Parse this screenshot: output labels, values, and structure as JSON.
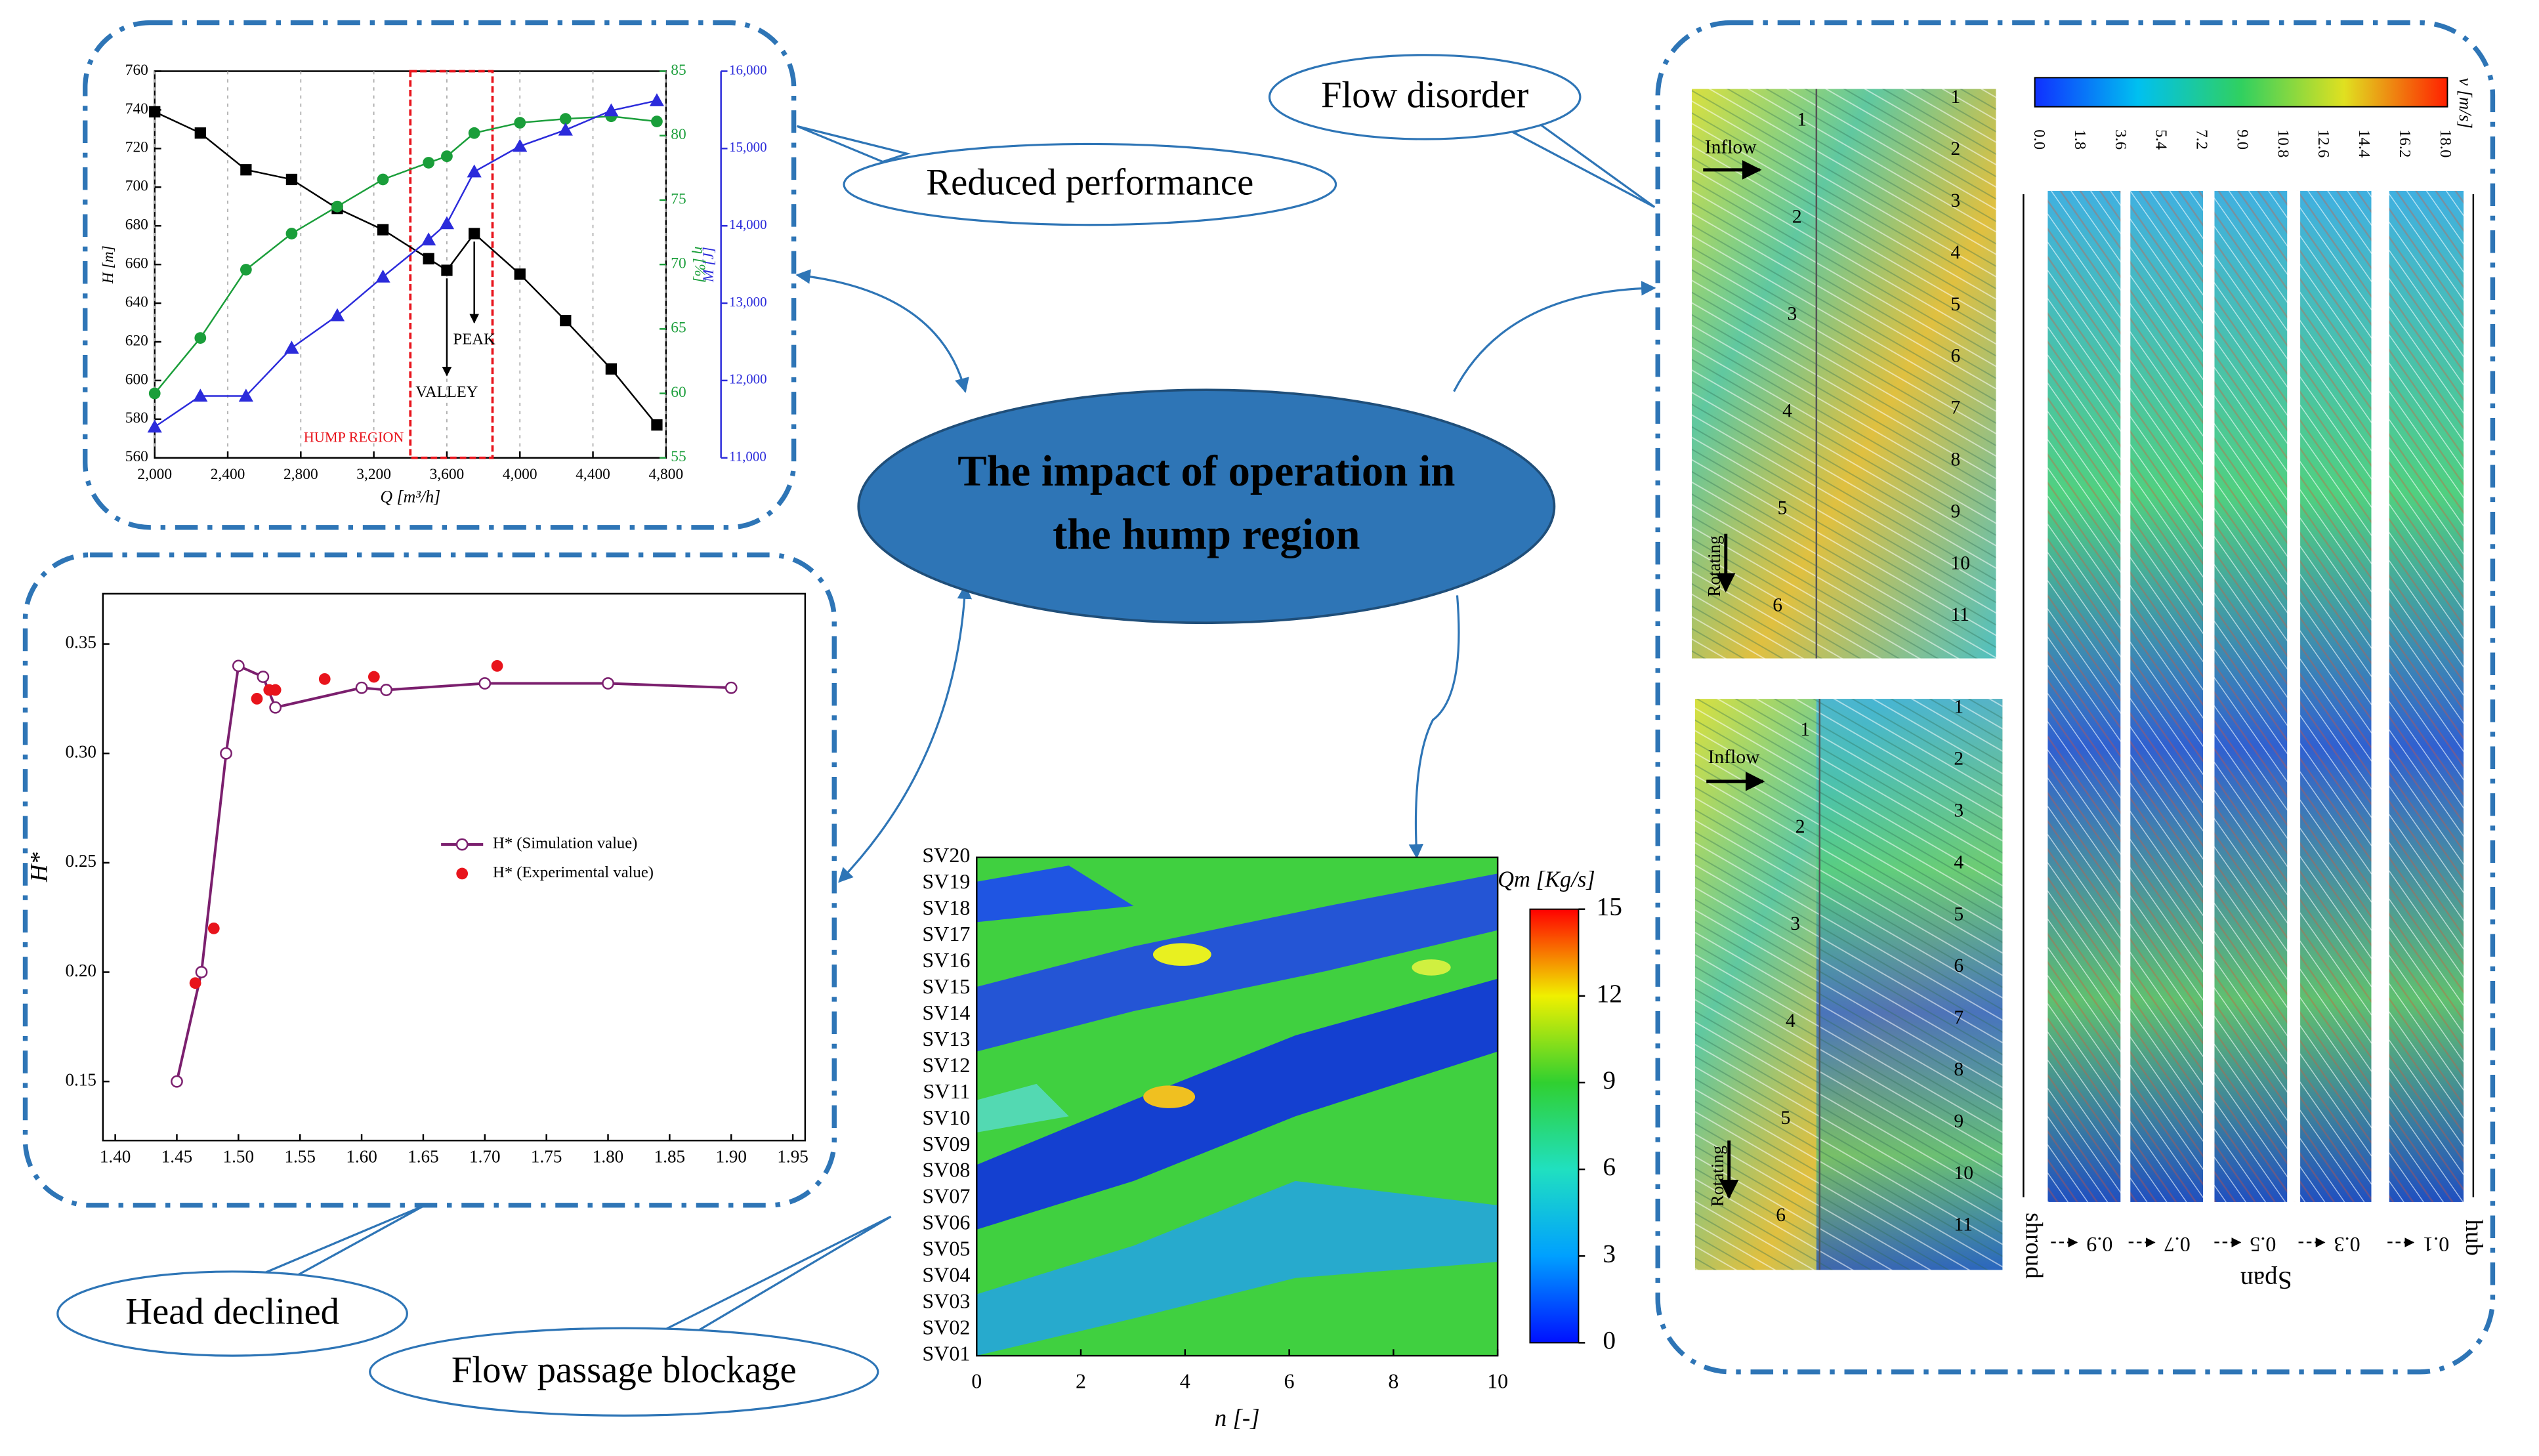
{
  "center": {
    "title_lines": [
      "The impact of operation in",
      "the hump region"
    ]
  },
  "callouts": {
    "reduced_performance": "Reduced performance",
    "flow_disorder": "Flow disorder",
    "head_declined": "Head declined",
    "flow_passage_blockage": "Flow passage blockage"
  },
  "chart_data": [
    {
      "type": "line",
      "xlabel": "Q [m³/h]",
      "ylabel": "H [m]",
      "y2label": "η [%]",
      "y3label": "M [J]",
      "xlim": [
        2000,
        4800
      ],
      "xticks": [
        {
          "value": 2000,
          "label": "2,000"
        },
        {
          "value": 2400,
          "label": "2,400"
        },
        {
          "value": 2800,
          "label": "2,800"
        },
        {
          "value": 3200,
          "label": "3,200"
        },
        {
          "value": 3600,
          "label": "3,600"
        },
        {
          "value": 4000,
          "label": "4,000"
        },
        {
          "value": 4400,
          "label": "4,400"
        },
        {
          "value": 4800,
          "label": "4,800"
        }
      ],
      "ylim": [
        560,
        760
      ],
      "yticks": [
        560,
        580,
        600,
        620,
        640,
        660,
        680,
        700,
        720,
        740,
        760
      ],
      "y2lim": [
        55,
        85
      ],
      "y2ticks": [
        55,
        60,
        65,
        70,
        75,
        80,
        85
      ],
      "y3lim": [
        11000,
        16000
      ],
      "y3ticks": [
        {
          "value": 11000,
          "label": "11,000"
        },
        {
          "value": 12000,
          "label": "12,000"
        },
        {
          "value": 13000,
          "label": "13,000"
        },
        {
          "value": 14000,
          "label": "14,000"
        },
        {
          "value": 15000,
          "label": "15,000"
        },
        {
          "value": 16000,
          "label": "16,000"
        }
      ],
      "grid": true,
      "annotations": {
        "peak": "PEAK",
        "valley": "VALLEY",
        "hump_region": "HUMP REGION"
      },
      "hump_region_x": [
        3400,
        3850
      ],
      "series": [
        {
          "color": "#000000",
          "marker": "square",
          "axis": "y",
          "x": [
            2000,
            2250,
            2500,
            2750,
            3000,
            3250,
            3500,
            3600,
            3750,
            4000,
            4250,
            4500,
            4750
          ],
          "values": [
            739,
            728,
            709,
            704,
            689,
            678,
            663,
            657,
            676,
            655,
            631,
            606,
            577
          ]
        },
        {
          "color": "#1a9e3a",
          "marker": "circle",
          "axis": "y2",
          "x": [
            2000,
            2250,
            2500,
            2750,
            3000,
            3250,
            3500,
            3600,
            3750,
            4000,
            4250,
            4500,
            4750
          ],
          "values": [
            60,
            64.3,
            69.6,
            72.4,
            74.5,
            76.6,
            77.9,
            78.4,
            80.2,
            81,
            81.3,
            81.5,
            81.1
          ]
        },
        {
          "color": "#2b2bdb",
          "marker": "triangle",
          "axis": "y3",
          "x": [
            2000,
            2250,
            2500,
            2750,
            3000,
            3250,
            3500,
            3600,
            3750,
            4000,
            4250,
            4500,
            4750
          ],
          "values": [
            11400,
            11800,
            11800,
            12420,
            12840,
            13340,
            13820,
            14030,
            14700,
            15030,
            15240,
            15490,
            15620
          ]
        }
      ]
    },
    {
      "type": "line",
      "ylabel": "H*",
      "xlim": [
        1.39,
        1.96
      ],
      "xticks": [
        {
          "value": 1.4,
          "label": "1.40"
        },
        1.45,
        {
          "value": 1.5,
          "label": "1.50"
        },
        1.55,
        {
          "value": 1.6,
          "label": "1.60"
        },
        1.65,
        {
          "value": 1.7,
          "label": "1.70"
        },
        1.75,
        {
          "value": 1.8,
          "label": "1.80"
        },
        1.85,
        {
          "value": 1.9,
          "label": "1.90"
        },
        1.95
      ],
      "ylim": [
        0.123,
        0.373
      ],
      "yticks": [
        0.15,
        {
          "value": 0.2,
          "label": "0.20"
        },
        0.25,
        {
          "value": 0.3,
          "label": "0.30"
        },
        0.35
      ],
      "series": [
        {
          "name": "H* (Simulation value)",
          "color": "#7b1f6e",
          "marker": "open-circle",
          "style": "line",
          "x": [
            1.45,
            1.47,
            1.49,
            1.5,
            1.52,
            1.53,
            1.6,
            1.62,
            1.7,
            1.8,
            1.9
          ],
          "values": [
            0.15,
            0.2,
            0.3,
            0.34,
            0.335,
            0.321,
            0.33,
            0.329,
            0.332,
            0.332,
            0.33
          ]
        },
        {
          "name": "H* (Experimental value)",
          "color": "#e8141c",
          "marker": "circle",
          "style": "markers",
          "x": [
            1.465,
            1.48,
            1.515,
            1.525,
            1.53,
            1.57,
            1.61,
            1.71
          ],
          "values": [
            0.195,
            0.22,
            0.325,
            0.329,
            0.329,
            0.334,
            0.335,
            0.34
          ]
        }
      ]
    },
    {
      "type": "heatmap",
      "xlabel": "n [-]",
      "colorbar_label": "Qm [Kg/s]",
      "categories": [
        "SV01",
        "SV02",
        "SV03",
        "SV04",
        "SV05",
        "SV06",
        "SV07",
        "SV08",
        "SV09",
        "SV10",
        "SV11",
        "SV12",
        "SV13",
        "SV14",
        "SV15",
        "SV16",
        "SV17",
        "SV18",
        "SV19",
        "SV20"
      ],
      "xlim": [
        0,
        10
      ],
      "xticks": [
        0,
        2,
        4,
        6,
        8,
        10
      ],
      "clim": [
        0,
        15
      ],
      "cticks": [
        0,
        3,
        6,
        9,
        12,
        15
      ]
    }
  ],
  "flow_field": {
    "colorbar_label": "v [m/s]",
    "colorbar_labels": [
      "0.0",
      "1.8",
      "3.6",
      "5.4",
      "7.2",
      "9.0",
      "10.8",
      "12.6",
      "14.4",
      "16.2",
      "18.0"
    ],
    "panels": [
      {
        "inflow": "Inflow",
        "rotating": "Rotating",
        "left_numbers": [
          1,
          2,
          3,
          4,
          5,
          6
        ],
        "right_numbers": [
          1,
          2,
          3,
          4,
          5,
          6,
          7,
          8,
          9,
          10,
          11
        ]
      },
      {
        "inflow": "Inflow",
        "rotating": "Rotating",
        "left_numbers": [
          1,
          2,
          3,
          4,
          5,
          6
        ],
        "right_numbers": [
          1,
          2,
          3,
          4,
          5,
          6,
          7,
          8,
          9,
          10,
          11
        ]
      }
    ],
    "span_title": "Span",
    "hub": "hub",
    "shroud": "shroud",
    "span_values": [
      0.9,
      0.7,
      0.5,
      0.3,
      0.1
    ]
  }
}
